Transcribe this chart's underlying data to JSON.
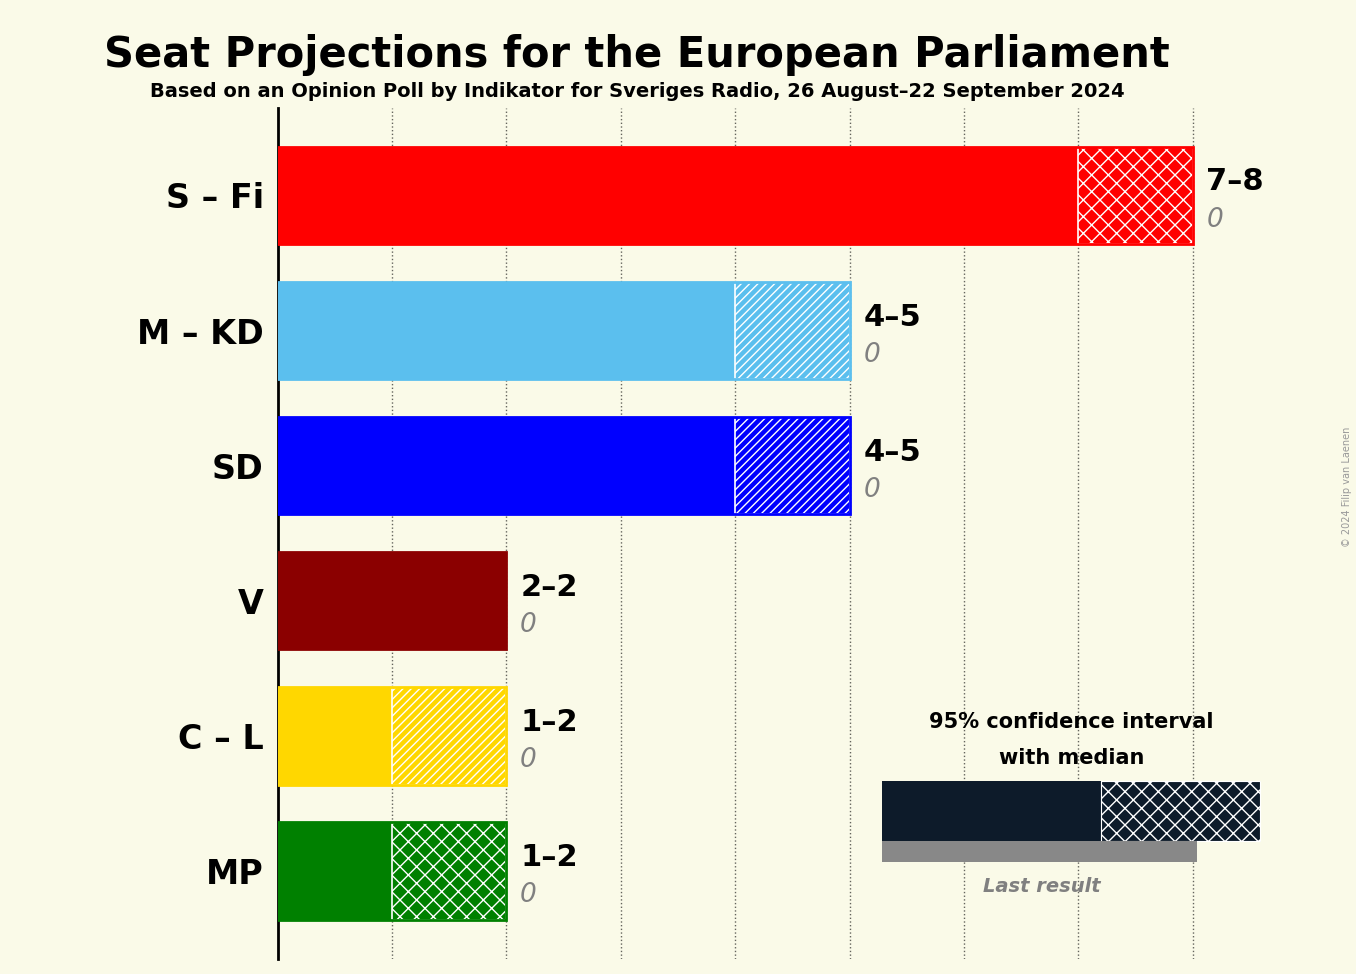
{
  "title": "Seat Projections for the European Parliament",
  "subtitle": "Based on an Opinion Poll by Indikator for Sveriges Radio, 26 August–22 September 2024",
  "copyright": "© 2024 Filip van Laenen",
  "background_color": "#FAFAE8",
  "parties": [
    "S – Fi",
    "M – KD",
    "SD",
    "V",
    "C – L",
    "MP"
  ],
  "median_values": [
    7,
    4,
    4,
    2,
    1,
    1
  ],
  "high_values": [
    8,
    5,
    5,
    2,
    2,
    2
  ],
  "last_results": [
    0,
    0,
    0,
    0,
    0,
    0
  ],
  "colors": [
    "#FF0000",
    "#5BBFEE",
    "#0000FF",
    "#8B0000",
    "#FFD700",
    "#008000"
  ],
  "hatch_patterns": [
    "xx",
    "////",
    "////",
    "",
    "////",
    "xx"
  ],
  "label_texts": [
    "7–8",
    "4–5",
    "4–5",
    "2–2",
    "1–2",
    "1–2"
  ],
  "xlim": [
    0,
    9
  ],
  "grid_positions": [
    1,
    2,
    3,
    4,
    5,
    6,
    7,
    8
  ],
  "bar_height": 0.72,
  "title_fontsize": 30,
  "subtitle_fontsize": 14,
  "label_fontsize": 22,
  "party_fontsize": 24
}
